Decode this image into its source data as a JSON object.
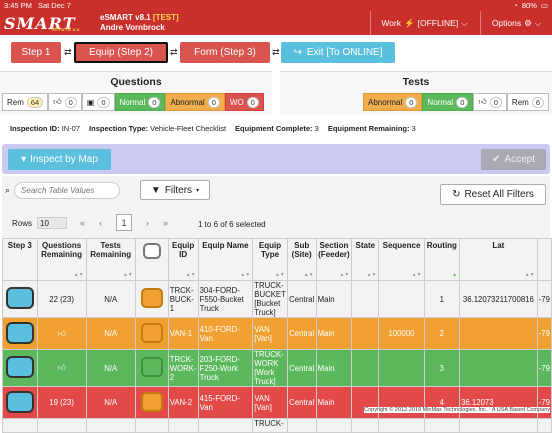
{
  "status": {
    "time": "3:45 PM",
    "date": "Sat Dec 7",
    "battery": "80%"
  },
  "app": {
    "logo": "SMART",
    "logo_sub": "MinMax",
    "name": "eSMART v8.1 ",
    "tag": "[TEST]",
    "user": "Andre Vornbrock"
  },
  "menu": {
    "work": "Work",
    "work_state": "[OFFLINE]",
    "options": "Options"
  },
  "steps": {
    "step1": "Step 1",
    "step2": "Equip (Step 2)",
    "step3": "Form (Step 3)",
    "exit": "Exit [To ONLINE]"
  },
  "questions": {
    "title": "Questions",
    "rem_label": "Rem",
    "rem_value": "64",
    "thumbs_value": "0",
    "camera_value": "0",
    "normal_label": "Normal",
    "normal_value": "0",
    "abnormal_label": "Abnormal",
    "abnormal_value": "0",
    "wo_label": "WO",
    "wo_value": "0"
  },
  "tests": {
    "title": "Tests",
    "abnormal_label": "Abnormal",
    "abnormal_value": "0",
    "normal_label": "Normal",
    "normal_value": "0",
    "thumbs_value": "0",
    "rem_label": "Rem",
    "rem_value": "6"
  },
  "inspection": {
    "id_label": "Inspection ID:",
    "id_value": "IN-07",
    "type_label": "Inspection Type:",
    "type_value": "Vehicle-Fleet Checklist",
    "complete_label": "Equipment Complete:",
    "complete_value": "3",
    "remaining_label": "Equipment Remaining:",
    "remaining_value": "3"
  },
  "actions": {
    "inspect_map": "Inspect by Map",
    "accept": "Accept"
  },
  "toolbar": {
    "search_placeholder": "Search Table Values",
    "filters": "Filters",
    "reset": "Reset All Filters",
    "rows_label": "Rows",
    "rows_value": "10",
    "page": "1",
    "selection": "1 to 6 of 6 selected"
  },
  "columns": [
    "Step 3",
    "Questions Remaining",
    "Tests Remaining",
    "",
    "Equip ID",
    "Equip Name",
    "Equip Type",
    "Sub (Site)",
    "Section (Feeder)",
    "State",
    "Sequence",
    "Routing",
    "Lat",
    ""
  ],
  "rows": [
    {
      "q": "22 (23)",
      "t": "N/A",
      "id": "TRCK-BUCK-1",
      "name": "304-FORD-F550-Bucket Truck",
      "type": "TRUCK-BUCKET [Bucket Truck]",
      "site": "Central",
      "section": "Main",
      "state": "",
      "seq": "",
      "routing": "1",
      "lat": "36.12073211700816",
      "lon": "-79"
    },
    {
      "q": "",
      "t": "N/A",
      "id": "VAN-1",
      "name": "410-FORD-Van",
      "type": "VAN [Van]",
      "site": "Central",
      "section": "Main",
      "state": "",
      "seq": "100000",
      "routing": "2",
      "lat": "",
      "lon": "-79"
    },
    {
      "q": "",
      "t": "N/A",
      "id": "TRCK-WORK-2",
      "name": "203-FORD-F250-Work Truck",
      "type": "TRUCK-WORK [Work Truck]",
      "site": "Central",
      "section": "Main",
      "state": "",
      "seq": "",
      "routing": "3",
      "lat": "",
      "lon": "-79"
    },
    {
      "q": "19 (23)",
      "t": "N/A",
      "id": "VAN-2",
      "name": "415-FORD-Van",
      "type": "VAN [Van]",
      "site": "Central",
      "section": "Main",
      "state": "",
      "seq": "",
      "routing": "4",
      "lat": "36.12073",
      "lon": "-79"
    },
    {
      "q": "",
      "t": "",
      "id": "",
      "name": "",
      "type": "TRUCK-",
      "site": "",
      "section": "",
      "state": "",
      "seq": "",
      "routing": "",
      "lat": "",
      "lon": ""
    }
  ],
  "footer": {
    "copyright": "Copyright © 2012-2019 MinMax Technologies, Inc. - A USA Based Company"
  }
}
